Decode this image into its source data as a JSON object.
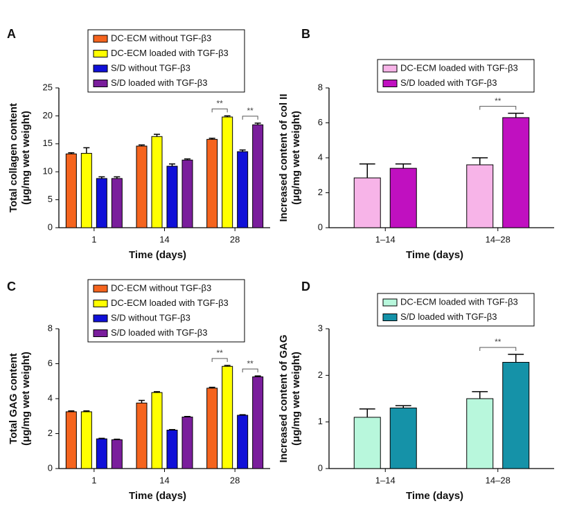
{
  "chart_data": [
    {
      "type": "bar",
      "label": "A",
      "xlabel": "Time (days)",
      "ylabel": [
        "Total collagen content",
        "(μg/mg wet weight)"
      ],
      "categories": [
        "1",
        "14",
        "28"
      ],
      "series": [
        {
          "name": "DC-ECM without TGF-β3",
          "color": "#f5641e",
          "values": [
            13.2,
            14.6,
            15.8
          ],
          "errors": [
            0.2,
            0.2,
            0.2
          ]
        },
        {
          "name": "DC-ECM loaded with TGF-β3",
          "color": "#ffff00",
          "values": [
            13.3,
            16.3,
            19.8
          ],
          "errors": [
            1.0,
            0.4,
            0.2
          ]
        },
        {
          "name": "S/D without TGF-β3",
          "color": "#1010d8",
          "values": [
            8.8,
            11.0,
            13.6
          ],
          "errors": [
            0.3,
            0.4,
            0.3
          ]
        },
        {
          "name": "S/D loaded with TGF-β3",
          "color": "#7a1e9c",
          "values": [
            8.8,
            12.1,
            18.4
          ],
          "errors": [
            0.3,
            0.2,
            0.3
          ]
        }
      ],
      "ylim": [
        0,
        25
      ],
      "yticks": [
        0,
        5,
        10,
        15,
        20,
        25
      ],
      "annotations": [
        "**",
        "**"
      ]
    },
    {
      "type": "bar",
      "label": "B",
      "xlabel": "Time (days)",
      "ylabel": [
        "Increased content of col II",
        "(μg/mg wet weight)"
      ],
      "categories": [
        "1–14",
        "14–28"
      ],
      "series": [
        {
          "name": "DC-ECM loaded with TGF-β3",
          "color": "#f7b4e8",
          "values": [
            2.85,
            3.6
          ],
          "errors": [
            0.8,
            0.4
          ]
        },
        {
          "name": "S/D loaded with TGF-β3",
          "color": "#c010c0",
          "values": [
            3.4,
            6.3
          ],
          "errors": [
            0.25,
            0.25
          ]
        }
      ],
      "ylim": [
        0,
        8
      ],
      "yticks": [
        0,
        2,
        4,
        6,
        8
      ],
      "annotations": [
        "**"
      ]
    },
    {
      "type": "bar",
      "label": "C",
      "xlabel": "Time (days)",
      "ylabel": [
        "Total GAG content",
        "(μg/mg wet weight)"
      ],
      "categories": [
        "1",
        "14",
        "28"
      ],
      "series": [
        {
          "name": "DC-ECM without TGF-β3",
          "color": "#f5641e",
          "values": [
            3.25,
            3.75,
            4.6
          ],
          "errors": [
            0.05,
            0.15,
            0.05
          ]
        },
        {
          "name": "DC-ECM loaded with TGF-β3",
          "color": "#ffff00",
          "values": [
            3.25,
            4.35,
            5.85
          ],
          "errors": [
            0.05,
            0.05,
            0.05
          ]
        },
        {
          "name": "S/D without TGF-β3",
          "color": "#1010d8",
          "values": [
            1.7,
            2.2,
            3.05
          ],
          "errors": [
            0.03,
            0.03,
            0.03
          ]
        },
        {
          "name": "S/D loaded with TGF-β3",
          "color": "#7a1e9c",
          "values": [
            1.65,
            2.95,
            5.25
          ],
          "errors": [
            0.03,
            0.03,
            0.05
          ]
        }
      ],
      "ylim": [
        0,
        8
      ],
      "yticks": [
        0,
        2,
        4,
        6,
        8
      ],
      "annotations": [
        "**",
        "**"
      ]
    },
    {
      "type": "bar",
      "label": "D",
      "xlabel": "Time (days)",
      "ylabel": [
        "Increased content of GAG",
        "(μg/mg wet weight)"
      ],
      "categories": [
        "1–14",
        "14–28"
      ],
      "series": [
        {
          "name": "DC-ECM loaded with TGF-β3",
          "color": "#b8f7dc",
          "values": [
            1.1,
            1.5
          ],
          "errors": [
            0.18,
            0.15
          ]
        },
        {
          "name": "S/D loaded with TGF-β3",
          "color": "#1592a8",
          "values": [
            1.3,
            2.28
          ],
          "errors": [
            0.05,
            0.17
          ]
        }
      ],
      "ylim": [
        0,
        3
      ],
      "yticks": [
        0,
        1,
        2,
        3
      ],
      "annotations": [
        "**"
      ]
    }
  ]
}
